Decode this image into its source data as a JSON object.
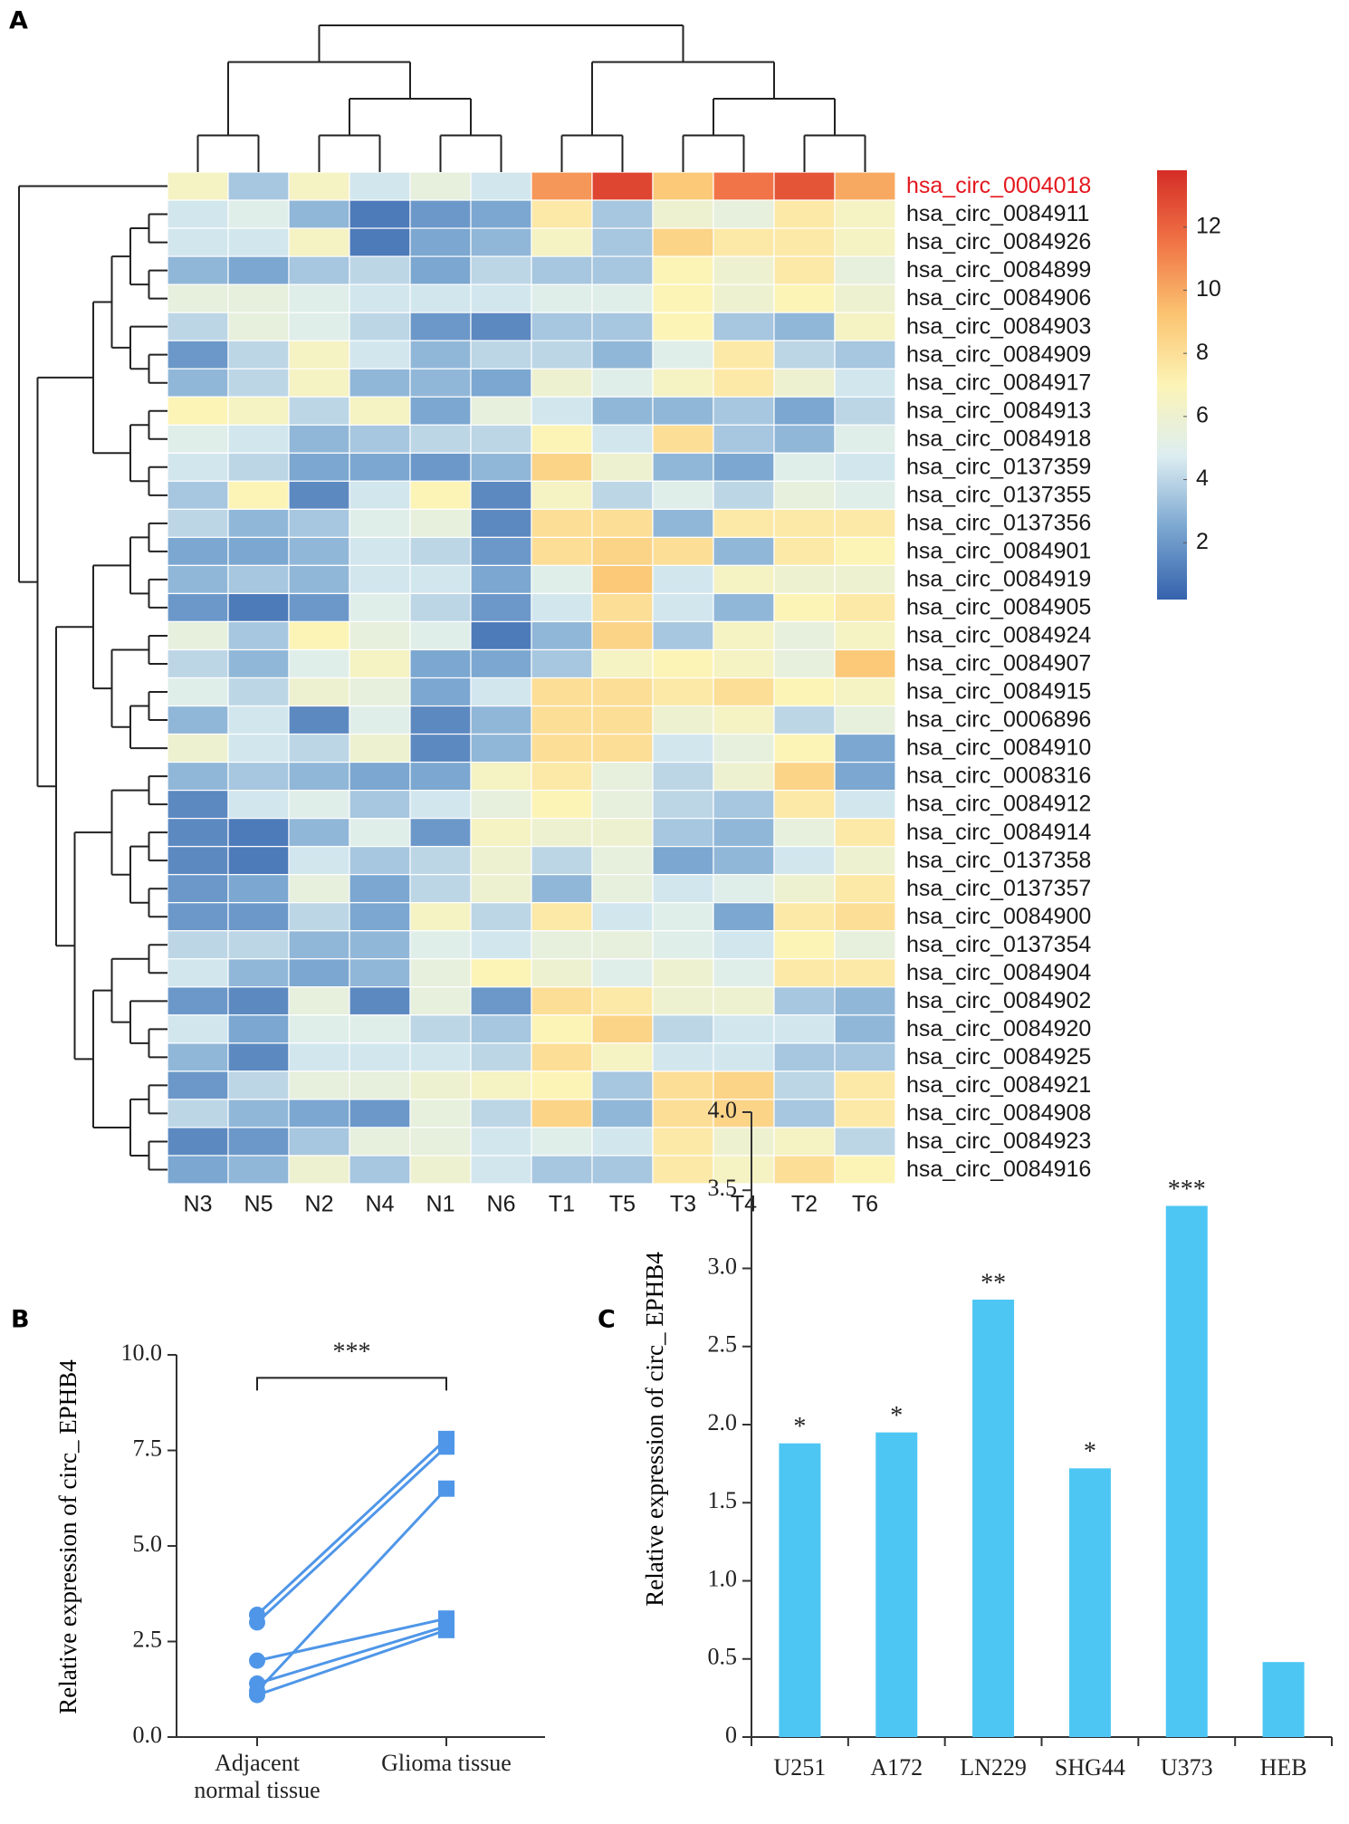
{
  "chart_data": [
    {
      "type": "heatmap",
      "panel": "A",
      "columns": [
        "N3",
        "N5",
        "N2",
        "N4",
        "N1",
        "N6",
        "T1",
        "T5",
        "T3",
        "T4",
        "T2",
        "T6"
      ],
      "rows": [
        "hsa_circ_0004018",
        "hsa_circ_0084911",
        "hsa_circ_0084926",
        "hsa_circ_0084899",
        "hsa_circ_0084906",
        "hsa_circ_0084903",
        "hsa_circ_0084909",
        "hsa_circ_0084917",
        "hsa_circ_0084913",
        "hsa_circ_0084918",
        "hsa_circ_0137359",
        "hsa_circ_0137355",
        "hsa_circ_0137356",
        "hsa_circ_0084901",
        "hsa_circ_0084919",
        "hsa_circ_0084905",
        "hsa_circ_0084924",
        "hsa_circ_0084907",
        "hsa_circ_0084915",
        "hsa_circ_0006896",
        "hsa_circ_0084910",
        "hsa_circ_0008316",
        "hsa_circ_0084912",
        "hsa_circ_0084914",
        "hsa_circ_0137358",
        "hsa_circ_0137357",
        "hsa_circ_0084900",
        "hsa_circ_0137354",
        "hsa_circ_0084904",
        "hsa_circ_0084902",
        "hsa_circ_0084920",
        "hsa_circ_0084925",
        "hsa_circ_0084921",
        "hsa_circ_0084908",
        "hsa_circ_0084923",
        "hsa_circ_0084916"
      ],
      "values": [
        [
          6.5,
          3.5,
          6.5,
          4.5,
          5.5,
          4.5,
          10.5,
          13,
          9,
          11.5,
          12.5,
          10
        ],
        [
          4.5,
          5,
          3,
          1,
          2,
          2.5,
          7.5,
          3.5,
          6,
          5.5,
          7.5,
          6.5
        ],
        [
          4.5,
          4.5,
          6.5,
          1,
          2.5,
          3,
          6.5,
          3.5,
          8.5,
          7.5,
          7.5,
          6.5
        ],
        [
          3,
          2.5,
          3.5,
          4,
          2.5,
          4,
          3.5,
          3.5,
          7,
          6,
          7.5,
          5.5
        ],
        [
          5.5,
          5.5,
          5,
          4.5,
          4.5,
          4.5,
          5,
          5,
          7,
          6,
          7,
          6
        ],
        [
          4,
          5.5,
          5,
          4,
          2,
          1.5,
          3.5,
          3.5,
          7,
          3.5,
          3,
          6.5
        ],
        [
          2,
          4,
          6.5,
          4.5,
          3,
          4,
          4,
          3,
          5,
          7.5,
          4,
          3.5
        ],
        [
          3,
          4,
          6.5,
          3,
          3,
          2.5,
          6,
          5,
          6.5,
          7.5,
          6,
          4.5
        ],
        [
          7,
          6.5,
          4,
          6.5,
          2.5,
          5.5,
          4.5,
          3,
          3,
          3.5,
          2.5,
          4
        ],
        [
          5,
          4.5,
          3,
          3.5,
          4,
          4,
          7,
          4.5,
          8,
          3.5,
          3,
          5
        ],
        [
          4.5,
          4,
          2.5,
          2.5,
          2,
          3,
          8.5,
          6,
          3,
          2.5,
          5,
          4.5
        ],
        [
          3.5,
          7,
          1.5,
          4.5,
          7,
          1.5,
          6.5,
          4,
          5,
          4,
          5.5,
          5
        ],
        [
          4,
          3,
          3.5,
          5,
          5.5,
          1.5,
          8,
          8,
          3,
          7.5,
          7.5,
          7.5
        ],
        [
          2.5,
          2.5,
          3,
          4.5,
          4,
          2,
          8,
          8.5,
          8,
          3,
          7.5,
          7
        ],
        [
          3,
          3.5,
          3,
          4.5,
          4.5,
          2.5,
          5,
          9,
          4.5,
          6.5,
          6,
          6
        ],
        [
          2,
          1,
          2,
          5,
          4,
          2,
          4.5,
          8,
          4.5,
          3,
          7,
          7.5
        ],
        [
          5.5,
          3.5,
          7,
          5.5,
          5,
          1,
          3,
          8.5,
          3.5,
          6.5,
          5.5,
          6.5
        ],
        [
          4,
          3,
          5,
          6.5,
          2.5,
          2.5,
          3.5,
          6.5,
          7,
          6.5,
          5.5,
          9
        ],
        [
          5,
          4,
          6,
          5.5,
          2.5,
          4.5,
          8,
          8,
          7.5,
          8,
          7,
          6.5
        ],
        [
          3,
          4.5,
          1.5,
          5,
          1.5,
          3,
          8,
          8,
          6,
          6.5,
          4,
          5.5
        ],
        [
          6,
          4.5,
          4,
          6,
          1.5,
          3,
          8,
          8,
          4.5,
          5.5,
          7,
          2.5
        ],
        [
          3,
          3.5,
          3,
          2.5,
          2.5,
          6.5,
          7.5,
          5.5,
          4,
          6,
          8.5,
          2.5
        ],
        [
          1.5,
          4.5,
          5,
          3.5,
          4.5,
          5.5,
          7,
          5.5,
          4,
          3.5,
          7.5,
          4.5
        ],
        [
          1.5,
          1,
          3,
          5,
          2,
          6.5,
          6,
          6,
          3.5,
          3,
          5.5,
          7.5
        ],
        [
          1.5,
          1,
          4.5,
          3.5,
          4,
          6,
          4,
          5.5,
          2.5,
          3,
          4.5,
          6
        ],
        [
          2,
          2.5,
          5.5,
          2.5,
          4,
          6,
          3,
          5.5,
          4.5,
          5,
          6,
          7.5
        ],
        [
          2,
          2,
          4,
          2.5,
          6.5,
          4,
          7.5,
          4.5,
          5,
          2.5,
          7.5,
          8
        ],
        [
          4,
          4,
          3,
          3,
          5,
          4.5,
          5.5,
          5.5,
          5,
          4.5,
          7,
          5.5
        ],
        [
          4.5,
          3,
          2.5,
          3,
          5.5,
          7,
          6,
          5,
          6,
          5,
          7.5,
          7.5
        ],
        [
          2,
          1.5,
          5.5,
          1.5,
          5.5,
          2,
          8,
          7.5,
          6,
          6,
          3.5,
          3
        ],
        [
          4.5,
          2.5,
          5,
          5,
          4,
          3.5,
          7,
          8.5,
          4,
          4.5,
          4.5,
          3
        ],
        [
          3,
          1.5,
          4.5,
          4.5,
          4.5,
          4,
          8,
          6.5,
          4.5,
          4.5,
          3.5,
          3.5
        ],
        [
          2,
          4,
          5.5,
          5.5,
          6,
          6.5,
          7,
          3.5,
          8,
          8.5,
          4,
          7.5
        ],
        [
          4,
          3,
          2.5,
          2,
          5.5,
          4,
          8.5,
          3,
          8,
          8.5,
          3.5,
          7.5
        ],
        [
          1.5,
          2,
          3.5,
          5.5,
          5.5,
          4.5,
          5,
          4.5,
          7.5,
          6,
          6.5,
          4
        ],
        [
          2.5,
          3,
          6,
          3.5,
          6,
          4.5,
          3.5,
          3.5,
          7.5,
          6.5,
          8,
          7
        ]
      ],
      "zlim": [
        0.2,
        13.8
      ],
      "zticks": [
        2,
        4,
        6,
        8,
        10,
        12
      ],
      "colormap": [
        "#3562ad",
        "#7aa6d0",
        "#dcedf1",
        "#fcf4b6",
        "#fbc370",
        "#f07346",
        "#d42d26"
      ],
      "highlight_row": 0,
      "highlight_color": "#e3181f"
    },
    {
      "type": "paired",
      "panel": "B",
      "categories": [
        "Adjacent normal tissue",
        "Glioma tissue"
      ],
      "ylabel": "Relative expression of circ_ EPHB4",
      "series": [
        {
          "values": [
            3.2,
            7.8
          ]
        },
        {
          "values": [
            3.0,
            7.6
          ]
        },
        {
          "values": [
            1.2,
            6.5
          ]
        },
        {
          "values": [
            2.0,
            3.1
          ]
        },
        {
          "values": [
            1.4,
            2.9
          ]
        },
        {
          "values": [
            1.1,
            2.8
          ]
        }
      ],
      "color": "#4f96e8",
      "markers": [
        "circle",
        "square"
      ],
      "ylim": [
        0,
        10
      ],
      "yticks": [
        {
          "value": 0,
          "label": "0.0"
        },
        2.5,
        {
          "value": 5,
          "label": "5.0"
        },
        7.5,
        {
          "value": 10,
          "label": "10.0"
        }
      ],
      "annotation": {
        "text": "***",
        "y": 9.4
      }
    },
    {
      "type": "bar",
      "panel": "C",
      "categories": [
        "U251",
        "A172",
        "LN229",
        "SHG44",
        "U373",
        "HEB"
      ],
      "values": [
        1.88,
        1.95,
        2.8,
        1.72,
        3.4,
        0.48
      ],
      "significance": [
        "*",
        "*",
        "**",
        "*",
        "***",
        null
      ],
      "ylabel": "Relative expression of circ_ EPHB4",
      "color": "#4dc6f4",
      "ylim": [
        0,
        4
      ],
      "yticks": [
        0,
        0.5,
        {
          "value": 1,
          "label": "1.0"
        },
        1.5,
        {
          "value": 2,
          "label": "2.0"
        },
        2.5,
        {
          "value": 3,
          "label": "3.0"
        },
        3.5,
        {
          "value": 4,
          "label": "4.0"
        }
      ]
    }
  ]
}
